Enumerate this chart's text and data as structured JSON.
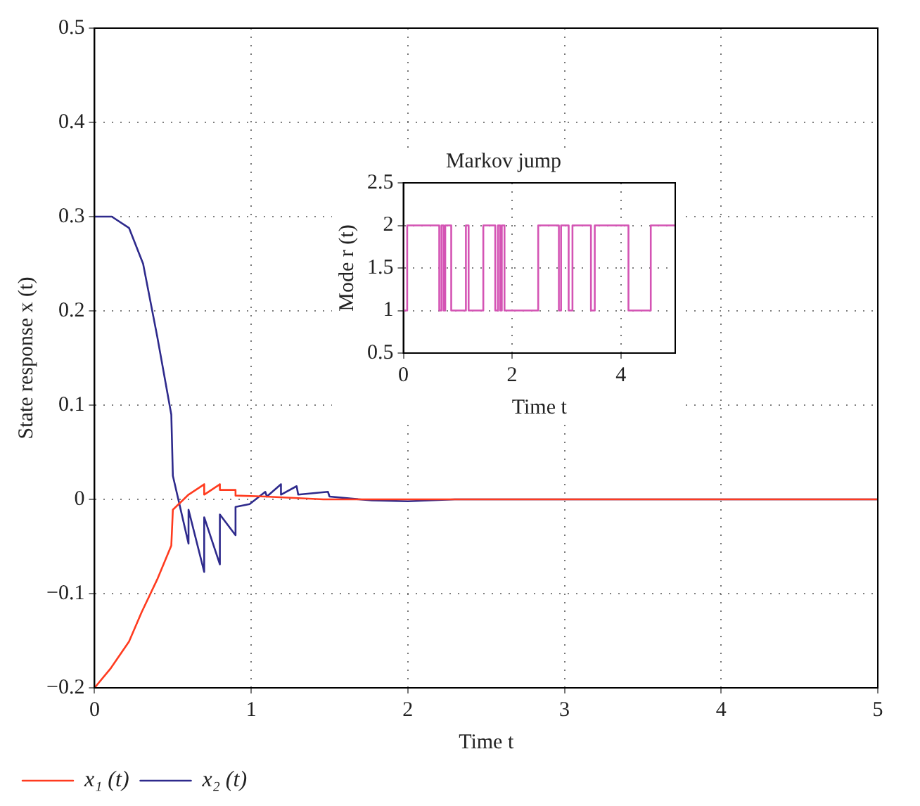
{
  "chart_data": [
    {
      "type": "line",
      "xlabel": "Time t",
      "ylabel": "State response x (t)",
      "xlim": [
        0,
        5
      ],
      "xticks": [
        0,
        1,
        2,
        3,
        4,
        5
      ],
      "ylim": [
        -0.2,
        0.5
      ],
      "yticks": [
        {
          "value": -0.2,
          "label": "−0.2"
        },
        {
          "value": -0.1,
          "label": "−0.1"
        },
        0,
        0.1,
        0.2,
        0.3,
        0.4,
        0.5
      ],
      "grid": true,
      "legend": "bottom left",
      "line_style": "solid",
      "marker": "none",
      "series": [
        {
          "name": "x₁ (t)",
          "color": "#ff3b1f",
          "x": [
            0,
            0.1,
            0.22,
            0.3,
            0.4,
            0.49,
            0.5,
            0.6,
            0.7,
            0.7,
            0.8,
            0.8,
            0.9,
            0.9,
            1.09,
            1.46,
            2,
            5
          ],
          "values": [
            -0.2,
            -0.18,
            -0.151,
            -0.12,
            -0.085,
            -0.049,
            -0.011,
            0.005,
            0.016,
            0.005,
            0.016,
            0.01,
            0.01,
            0.004,
            0.003,
            0,
            0,
            0
          ]
        },
        {
          "name": "x₂ (t)",
          "color": "#2e2a8c",
          "x": [
            0,
            0.11,
            0.22,
            0.31,
            0.4,
            0.49,
            0.5,
            0.6,
            0.6,
            0.7,
            0.7,
            0.8,
            0.8,
            0.9,
            0.9,
            0.99,
            1.09,
            1.1,
            1.19,
            1.19,
            1.29,
            1.3,
            1.49,
            1.5,
            1.69,
            1.77,
            2,
            2.3,
            5
          ],
          "values": [
            0.3,
            0.3,
            0.288,
            0.25,
            0.173,
            0.09,
            0.025,
            -0.047,
            -0.011,
            -0.077,
            -0.019,
            -0.069,
            -0.016,
            -0.038,
            -0.008,
            -0.005,
            0.008,
            0.003,
            0.016,
            0.005,
            0.014,
            0.005,
            0.008,
            0.003,
            0,
            -0.001,
            -0.002,
            0,
            0
          ]
        }
      ]
    },
    {
      "type": "step",
      "title": "Markov jump",
      "xlabel": "Time t",
      "ylabel": "Mode r (t)",
      "xlim": [
        0,
        5
      ],
      "xticks": [
        0,
        2,
        4
      ],
      "ylim": [
        0.5,
        2.5
      ],
      "yticks": [
        0.5,
        1,
        1.5,
        2,
        2.5
      ],
      "grid": true,
      "series": [
        {
          "color": "#d454b4",
          "x": [
            0,
            0.07,
            0.66,
            0.7,
            0.74,
            0.77,
            0.88,
            1.15,
            1.2,
            1.47,
            1.69,
            1.74,
            1.78,
            1.81,
            1.86,
            2.48,
            2.86,
            2.9,
            3.04,
            3.11,
            3.45,
            3.52,
            4.14,
            4.55,
            4.84,
            5
          ],
          "values": [
            2,
            1,
            2,
            1,
            2,
            1,
            2,
            1,
            2,
            1,
            2,
            1,
            2,
            1,
            2,
            1,
            2,
            1,
            2,
            1,
            2,
            1,
            2,
            1,
            2,
            2
          ]
        }
      ]
    }
  ]
}
